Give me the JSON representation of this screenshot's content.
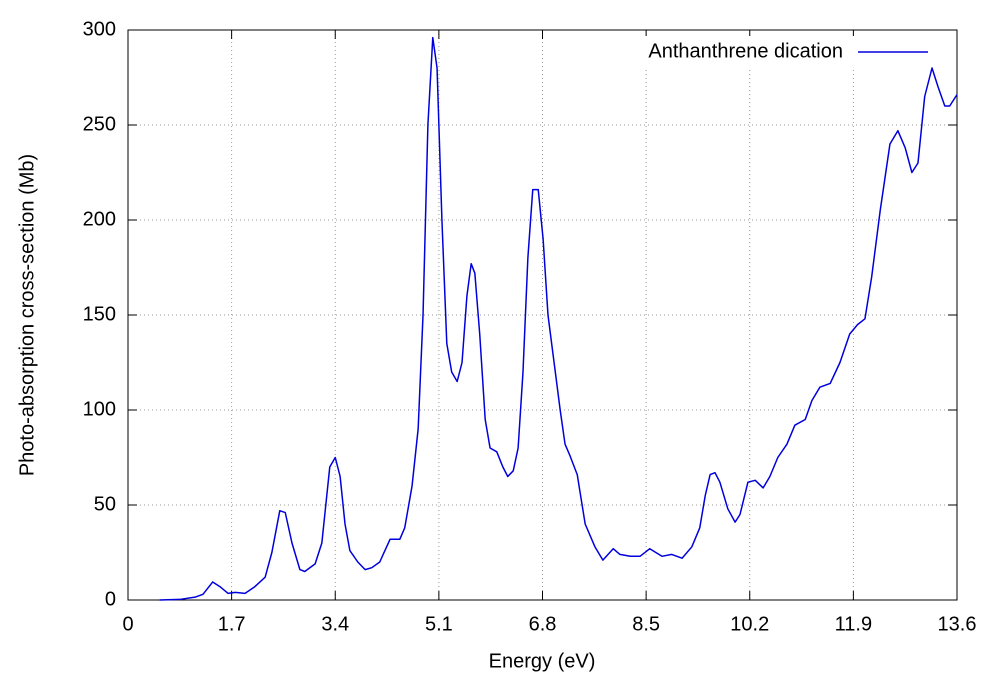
{
  "chart_data": {
    "type": "line",
    "x_label": "Energy (eV)",
    "y_label": "Photo-absorption cross-section (Mb)",
    "x": [
      0.52,
      0.85,
      1.1,
      1.23,
      1.39,
      1.51,
      1.64,
      1.76,
      1.92,
      2.08,
      2.25,
      2.36,
      2.49,
      2.58,
      2.69,
      2.82,
      2.9,
      3.07,
      3.18,
      3.31,
      3.4,
      3.48,
      3.56,
      3.64,
      3.77,
      3.89,
      4.0,
      4.13,
      4.3,
      4.46,
      4.54,
      4.66,
      4.76,
      4.84,
      4.92,
      5.0,
      5.07,
      5.15,
      5.23,
      5.31,
      5.4,
      5.48,
      5.56,
      5.63,
      5.69,
      5.77,
      5.86,
      5.94,
      6.05,
      6.15,
      6.23,
      6.32,
      6.4,
      6.48,
      6.56,
      6.64,
      6.73,
      6.81,
      6.89,
      6.97,
      7.09,
      7.17,
      7.25,
      7.37,
      7.5,
      7.66,
      7.79,
      7.96,
      8.07,
      8.24,
      8.4,
      8.56,
      8.76,
      8.92,
      9.09,
      9.25,
      9.38,
      9.47,
      9.55,
      9.63,
      9.71,
      9.84,
      9.96,
      10.04,
      10.17,
      10.29,
      10.42,
      10.53,
      10.66,
      10.81,
      10.94,
      11.11,
      11.22,
      11.35,
      11.52,
      11.68,
      11.84,
      11.97,
      12.09,
      12.2,
      12.34,
      12.5,
      12.63,
      12.75,
      12.86,
      12.96,
      13.07,
      13.19,
      13.29,
      13.4,
      13.48,
      13.6
    ],
    "series": [
      {
        "name": "Anthanthrene dication",
        "color": "#0000dd",
        "values": [
          0,
          0.3,
          1.5,
          3,
          9.5,
          7,
          3.5,
          4,
          3.5,
          7,
          12,
          25,
          47,
          46,
          30,
          16,
          15,
          19,
          30,
          70,
          75,
          65,
          40,
          26,
          20,
          16,
          17,
          20,
          32,
          32,
          38,
          60,
          90,
          150,
          250,
          296,
          280,
          200,
          135,
          120,
          115,
          125,
          160,
          177,
          172,
          140,
          95,
          80,
          78,
          70,
          65,
          68,
          80,
          120,
          180,
          216,
          216,
          190,
          150,
          130,
          100,
          82,
          76,
          66,
          40,
          28,
          21,
          27,
          24,
          23,
          23,
          27,
          23,
          24,
          22,
          28,
          38,
          55,
          66,
          67,
          62,
          48,
          41,
          45,
          62,
          63,
          59,
          65,
          75,
          82,
          92,
          95,
          105,
          112,
          114,
          125,
          140,
          145,
          148,
          170,
          205,
          240,
          247,
          238,
          225,
          230,
          265,
          280,
          270,
          260,
          260,
          266
        ]
      }
    ],
    "xlim": [
      0,
      13.6
    ],
    "xticks": [
      0,
      1.7,
      3.4,
      5.1,
      6.8,
      8.5,
      10.2,
      11.9,
      13.6
    ],
    "ylim": [
      0,
      300
    ],
    "yticks": [
      0,
      50,
      100,
      150,
      200,
      250,
      300
    ],
    "grid": true,
    "legend": "upper right"
  }
}
